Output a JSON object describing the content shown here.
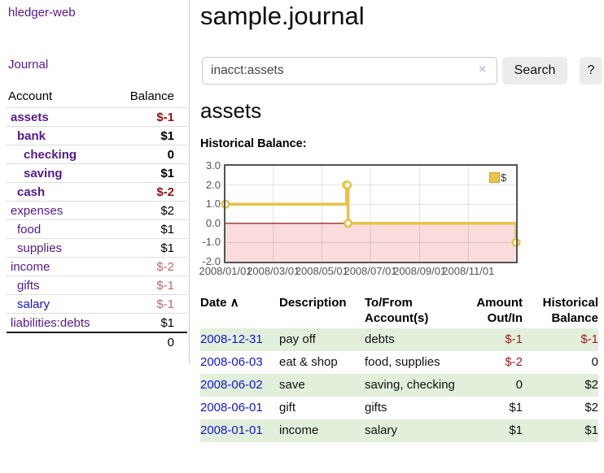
{
  "sidebar": {
    "brand": "hledger-web",
    "nav_journal": "Journal",
    "accounts_table": {
      "col_account": "Account",
      "col_balance": "Balance",
      "rows": [
        {
          "account": "assets",
          "balance": "$-1",
          "level": 0,
          "bold": true,
          "balance_color": "negative-dark",
          "link_color": "purple"
        },
        {
          "account": "bank",
          "balance": "$1",
          "level": 1,
          "bold": true,
          "balance_color": "normal",
          "link_color": "purple"
        },
        {
          "account": "checking",
          "balance": "0",
          "level": 2,
          "bold": true,
          "balance_color": "normal",
          "link_color": "purple"
        },
        {
          "account": "saving",
          "balance": "$1",
          "level": 2,
          "bold": true,
          "balance_color": "normal",
          "link_color": "purple"
        },
        {
          "account": "cash",
          "balance": "$-2",
          "level": 1,
          "bold": true,
          "balance_color": "negative-dark",
          "link_color": "purple"
        },
        {
          "account": "expenses",
          "balance": "$2",
          "level": 0,
          "bold": false,
          "balance_color": "normal",
          "link_color": "purple"
        },
        {
          "account": "food",
          "balance": "$1",
          "level": 1,
          "bold": false,
          "balance_color": "normal",
          "link_color": "purple"
        },
        {
          "account": "supplies",
          "balance": "$1",
          "level": 1,
          "bold": false,
          "balance_color": "normal",
          "link_color": "purple"
        },
        {
          "account": "income",
          "balance": "$-2",
          "level": 0,
          "bold": false,
          "balance_color": "negative-light",
          "link_color": "purple"
        },
        {
          "account": "gifts",
          "balance": "$-1",
          "level": 1,
          "bold": false,
          "balance_color": "negative-light",
          "link_color": "purple"
        },
        {
          "account": "salary",
          "balance": "$-1",
          "level": 1,
          "bold": false,
          "balance_color": "negative-light",
          "link_color": "blue"
        },
        {
          "account": "liabilities:debts",
          "balance": "$1",
          "level": 0,
          "bold": false,
          "balance_color": "normal",
          "link_color": "purple"
        }
      ],
      "total": "0"
    }
  },
  "header": {
    "title": "sample.journal"
  },
  "search": {
    "value": "inacct:assets",
    "clear_icon": "×",
    "search_button": "Search",
    "help_button": "?"
  },
  "account_page": {
    "heading": "assets",
    "chart_heading": "Historical Balance:"
  },
  "chart_data": {
    "type": "line",
    "steps": true,
    "title": "Historical Balance",
    "legend": [
      {
        "label": "$",
        "color": "#e9c248"
      }
    ],
    "x_range": [
      "2008-01-01",
      "2008-12-31"
    ],
    "y_range": [
      -2,
      3
    ],
    "y_ticks": [
      "3.0",
      "2.0",
      "1.0",
      "0.0",
      "-1.0",
      "-2.0"
    ],
    "x_ticks": [
      "2008/01/01",
      "2008/03/01",
      "2008/05/01",
      "2008/07/01",
      "2008/09/01",
      "2008/11/01"
    ],
    "series": [
      {
        "name": "$",
        "color": "#e9c248",
        "points": [
          {
            "x": "2008-01-01",
            "y": 1
          },
          {
            "x": "2008-06-01",
            "y": 2
          },
          {
            "x": "2008-06-02",
            "y": 2
          },
          {
            "x": "2008-06-03",
            "y": 0
          },
          {
            "x": "2008-12-31",
            "y": -1
          }
        ]
      }
    ],
    "negative_region_fill": "#fadcdc",
    "zero_line_color": "#8b0000",
    "grid": true,
    "legend_position": "top-right"
  },
  "register": {
    "columns": [
      {
        "label": "Date",
        "sort_icon": "∧"
      },
      {
        "label": "Description"
      },
      {
        "label": "To/From Account(s)"
      },
      {
        "label": "Amount Out/In"
      },
      {
        "label": "Historical Balance"
      }
    ],
    "rows": [
      {
        "date": "2008-12-31",
        "description": "pay off",
        "accounts": "debts",
        "amount": "$-1",
        "balance": "$-1",
        "amount_neg": true,
        "balance_neg": true,
        "shade": true
      },
      {
        "date": "2008-06-03",
        "description": "eat & shop",
        "accounts": "food, supplies",
        "amount": "$-2",
        "balance": "0",
        "amount_neg": true,
        "balance_neg": false,
        "shade": false
      },
      {
        "date": "2008-06-02",
        "description": "save",
        "accounts": "saving, checking",
        "amount": "0",
        "balance": "$2",
        "amount_neg": false,
        "balance_neg": false,
        "shade": true
      },
      {
        "date": "2008-06-01",
        "description": "gift",
        "accounts": "gifts",
        "amount": "$1",
        "balance": "$2",
        "amount_neg": false,
        "balance_neg": false,
        "shade": false
      },
      {
        "date": "2008-01-01",
        "description": "income",
        "accounts": "salary",
        "amount": "$1",
        "balance": "$1",
        "amount_neg": false,
        "balance_neg": false,
        "shade": true
      }
    ]
  }
}
